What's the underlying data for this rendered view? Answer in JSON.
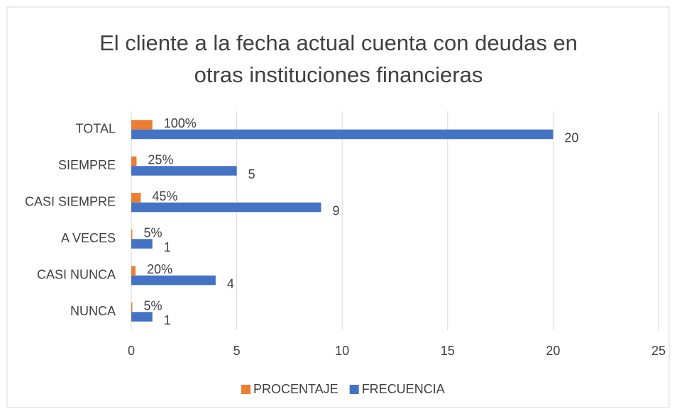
{
  "chart_data": {
    "type": "bar",
    "orientation": "horizontal",
    "title": "El cliente a la fecha actual cuenta con deudas en otras instituciones financieras",
    "categories": [
      "TOTAL",
      "SIEMPRE",
      "CASI SIEMPRE",
      "A VECES",
      "CASI NUNCA",
      "NUNCA"
    ],
    "series": [
      {
        "name": "PROCENTAJE",
        "color": "#ed7d31",
        "values": [
          1,
          0.25,
          0.45,
          0.05,
          0.2,
          0.05
        ],
        "value_labels": [
          "100%",
          "25%",
          "45%",
          "5%",
          "20%",
          "5%"
        ]
      },
      {
        "name": "FRECUENCIA",
        "color": "#4472c4",
        "values": [
          20,
          5,
          9,
          1,
          4,
          1
        ]
      }
    ],
    "xlim": [
      0,
      25
    ],
    "xticks": [
      0,
      5,
      10,
      15,
      20,
      25
    ],
    "grid": true,
    "legend": "bottom"
  }
}
